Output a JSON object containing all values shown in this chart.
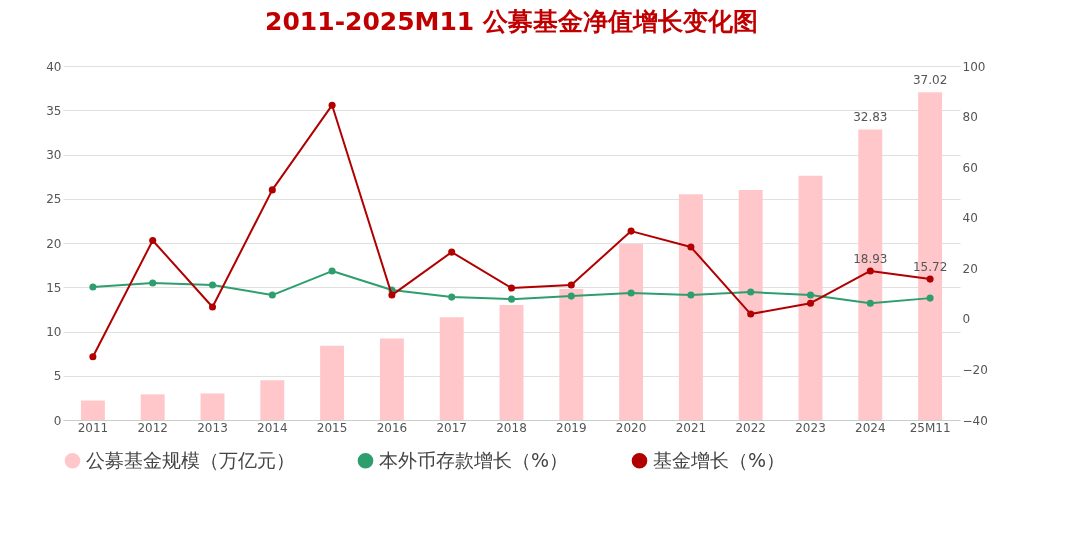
{
  "chart_data": {
    "type": "bar",
    "title": "2011-2025M11 公募基金净值增长变化图",
    "categories": [
      "2011",
      "2012",
      "2013",
      "2014",
      "2015",
      "2016",
      "2017",
      "2018",
      "2019",
      "2020",
      "2021",
      "2022",
      "2023",
      "2024",
      "25M11"
    ],
    "series": [
      {
        "name": "公募基金规模（万亿元）",
        "color": "#ffc7c9",
        "values": [
          2.2,
          2.9,
          3.0,
          4.5,
          8.4,
          9.2,
          11.6,
          13.0,
          14.8,
          19.9,
          25.5,
          26.0,
          27.6,
          32.83,
          37.02
        ],
        "value_labels": [
          null,
          null,
          null,
          null,
          null,
          null,
          null,
          null,
          null,
          null,
          null,
          null,
          null,
          "32.83",
          "37.02"
        ]
      },
      {
        "name": "本外币存款增长（%）",
        "type": "line",
        "axis": "y2",
        "color": "#2e9e6e",
        "values": [
          12.6,
          14.2,
          13.4,
          9.4,
          18.9,
          11.4,
          8.6,
          7.8,
          9.0,
          10.2,
          9.4,
          10.6,
          9.4,
          6.2,
          8.2
        ]
      },
      {
        "name": "基金增长（%）",
        "type": "line",
        "axis": "y2",
        "color": "#b00000",
        "values": [
          -15,
          31,
          4.7,
          51,
          84.5,
          9.4,
          26.4,
          12.2,
          13.4,
          34.7,
          28.4,
          1.9,
          6.2,
          18.93,
          15.72
        ],
        "value_labels": [
          null,
          null,
          null,
          null,
          null,
          null,
          null,
          null,
          null,
          null,
          null,
          null,
          null,
          "18.93",
          "15.72"
        ]
      }
    ],
    "ylim": [
      0,
      40
    ],
    "yticks": [
      0,
      5,
      10,
      15,
      20,
      25,
      30,
      35,
      40
    ],
    "y2lim": [
      -40,
      100
    ],
    "y2ticks": [
      -40,
      -20,
      0,
      20,
      40,
      60,
      80,
      100
    ],
    "grid": "y",
    "legend": "bottom",
    "marker": "circle"
  }
}
